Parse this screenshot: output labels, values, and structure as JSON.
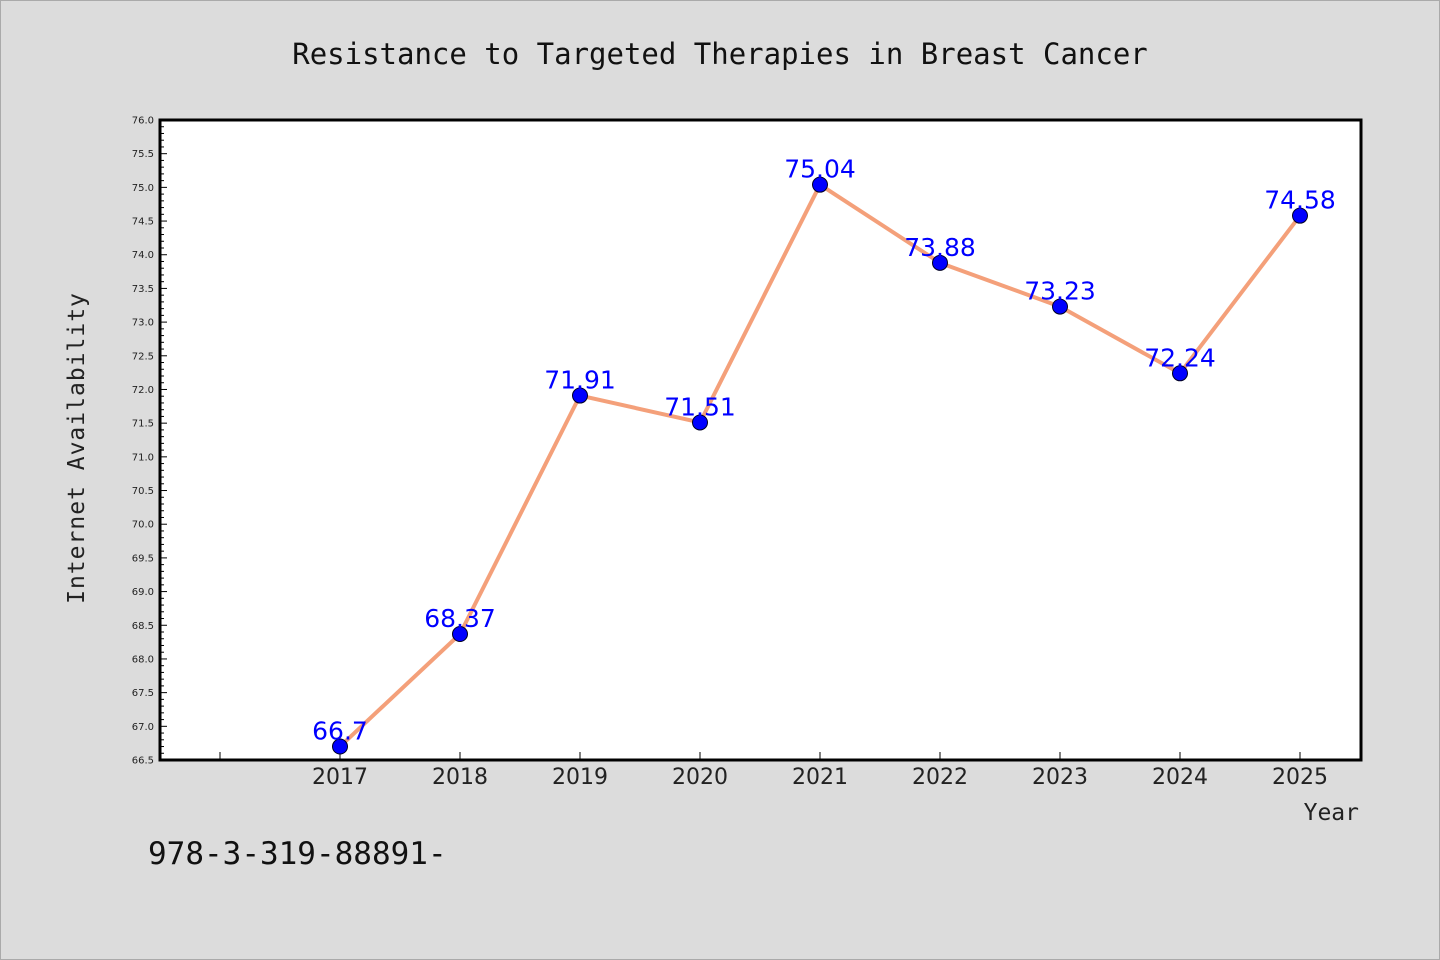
{
  "chart_data": {
    "type": "line",
    "title": "Resistance to Targeted Therapies in Breast Cancer",
    "xlabel": "Year",
    "ylabel": "Internet Availability",
    "categories": [
      "2017",
      "2018",
      "2019",
      "2020",
      "2021",
      "2022",
      "2023",
      "2024",
      "2025"
    ],
    "series": [
      {
        "values": [
          66.7,
          68.37,
          71.91,
          71.51,
          75.04,
          73.88,
          73.23,
          72.24,
          74.58
        ],
        "labels": [
          "66.7",
          "68.37",
          "71.91",
          "71.51",
          "75.04",
          "73.88",
          "73.23",
          "72.24",
          "74.58"
        ],
        "line_color": "#f4a07a",
        "marker_color": "#0000ff"
      }
    ],
    "ylim": [
      66.5,
      76.0
    ],
    "ytick_step": 0.5,
    "grid": false,
    "legend": "none"
  },
  "footnote": "978-3-319-88891-",
  "colors": {
    "background": "#dcdcdc",
    "plot_background": "#ffffff",
    "frame": "#000000"
  }
}
